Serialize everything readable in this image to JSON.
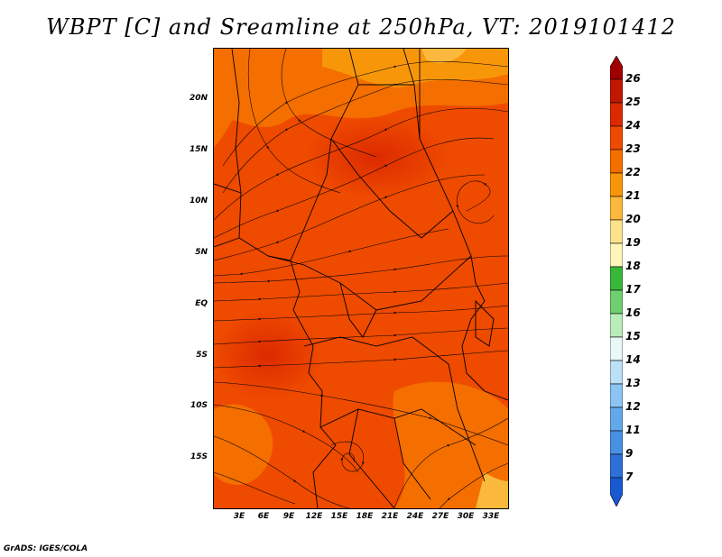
{
  "title": "WBPT [C] and Sreamline at 250hPa, VT: 2019101412",
  "credit": "GrADS: IGES/COLA",
  "map": {
    "lat_labels": [
      "20N",
      "15N",
      "10N",
      "5N",
      "EQ",
      "5S",
      "10S",
      "15S"
    ],
    "lon_labels": [
      "3E",
      "6E",
      "9E",
      "12E",
      "15E",
      "18E",
      "21E",
      "24E",
      "27E",
      "30E",
      "33E"
    ]
  },
  "colorbar": {
    "labels": [
      "26",
      "25",
      "24",
      "23",
      "22",
      "21",
      "20",
      "19",
      "18",
      "17",
      "16",
      "15",
      "14",
      "13",
      "12",
      "11",
      "9",
      "7"
    ],
    "colors": [
      "#a00000",
      "#c01800",
      "#dc2a00",
      "#ee4a00",
      "#f46e00",
      "#f8960a",
      "#fab83c",
      "#fde28c",
      "#fef6b8",
      "#38b838",
      "#70d070",
      "#b8ecb8",
      "#e8f8f4",
      "#bce0f8",
      "#8cc4f4",
      "#64a8ec",
      "#4890e4",
      "#2c70d8",
      "#1858d0"
    ]
  }
}
